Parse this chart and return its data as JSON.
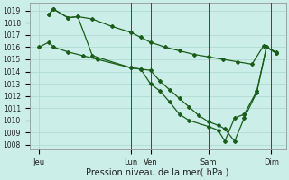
{
  "background_color": "#cceee8",
  "grid_color": "#aad8cc",
  "line_color": "#1a5c1a",
  "marker_color": "#1a5c1a",
  "ylabel_ticks": [
    1008,
    1009,
    1010,
    1011,
    1012,
    1013,
    1014,
    1015,
    1016,
    1017,
    1018,
    1019
  ],
  "ylim": [
    1007.6,
    1019.6
  ],
  "xlabel": "Pression niveau de la mer( hPa )",
  "day_labels": [
    "Jeu",
    "Lun",
    "Ven",
    "Sam",
    "Dim"
  ],
  "day_positions": [
    0.0,
    9.5,
    11.5,
    17.5,
    24.0
  ],
  "xlim": [
    -1,
    25.5
  ],
  "vline_x": [
    9.5,
    11.5,
    17.5,
    24.0
  ],
  "series1_x": [
    0.0,
    1.0,
    1.5,
    3.0,
    4.5,
    6.0,
    9.5,
    10.5,
    11.5,
    12.5,
    13.5,
    14.5,
    15.5,
    16.5,
    17.5,
    18.5,
    19.2,
    20.2,
    21.2,
    22.5,
    23.5,
    24.5
  ],
  "series1_y": [
    1016.0,
    1016.4,
    1016.0,
    1015.6,
    1015.3,
    1015.0,
    1014.3,
    1014.2,
    1014.1,
    1013.2,
    1012.5,
    1011.8,
    1011.1,
    1010.4,
    1009.9,
    1009.6,
    1009.3,
    1008.3,
    1010.2,
    1012.3,
    1016.0,
    1015.5
  ],
  "series2_x": [
    1.0,
    1.5,
    3.0,
    4.0,
    5.5,
    7.5,
    9.5,
    10.5,
    11.5,
    13.0,
    14.5,
    16.0,
    17.5,
    19.0,
    20.5,
    22.0,
    23.2,
    24.5
  ],
  "series2_y": [
    1018.7,
    1019.1,
    1018.4,
    1018.5,
    1018.3,
    1017.7,
    1017.2,
    1016.8,
    1016.4,
    1016.0,
    1015.7,
    1015.4,
    1015.2,
    1015.0,
    1014.8,
    1014.6,
    1016.1,
    1015.6
  ],
  "series3_x": [
    1.0,
    1.5,
    3.0,
    4.0,
    5.5,
    9.5,
    10.5,
    11.5,
    12.5,
    13.5,
    14.5,
    15.5,
    17.5,
    18.5,
    19.2,
    20.2,
    21.2,
    22.5,
    23.5,
    24.5
  ],
  "series3_y": [
    1018.7,
    1019.1,
    1018.4,
    1018.5,
    1015.3,
    1014.3,
    1014.2,
    1013.0,
    1012.4,
    1011.5,
    1010.5,
    1010.0,
    1009.5,
    1009.2,
    1008.3,
    1010.2,
    1010.5,
    1012.4,
    1016.0,
    1015.5
  ],
  "figsize": [
    3.2,
    2.0
  ],
  "dpi": 100
}
